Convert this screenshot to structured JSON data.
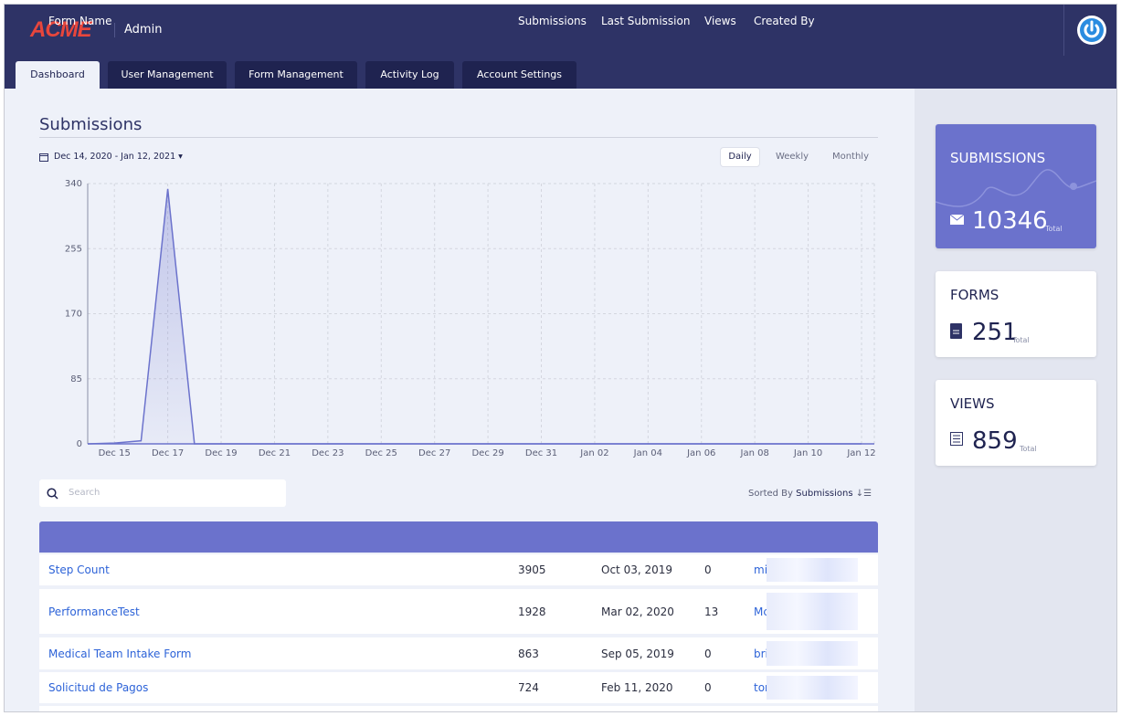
{
  "header": {
    "logo": "ACME",
    "title": "Admin"
  },
  "tabs": [
    "Dashboard",
    "User Management",
    "Form Management",
    "Activity Log",
    "Account Settings"
  ],
  "section_title": "Submissions",
  "date_range": "Dec 14, 2020 - Jan 12, 2021",
  "range_buttons": [
    "Daily",
    "Weekly",
    "Monthly"
  ],
  "chart_data": {
    "type": "area",
    "color": "#6b72cc",
    "categories": [
      null,
      "Dec 15",
      null,
      "Dec 17",
      null,
      "Dec 19",
      null,
      "Dec 21",
      null,
      "Dec 23",
      null,
      "Dec 25",
      null,
      "Dec 27",
      null,
      "Dec 29",
      null,
      "Dec 31",
      null,
      "Jan 02",
      null,
      "Jan 04",
      null,
      "Jan 06",
      null,
      "Jan 08",
      null,
      "Jan 10",
      null,
      "Jan 12"
    ],
    "values": [
      0,
      1,
      4,
      333,
      0,
      0,
      0,
      0,
      0,
      0,
      0,
      0,
      0,
      0,
      0,
      0,
      0,
      0,
      0,
      0,
      0,
      0,
      0,
      0,
      0,
      0,
      0,
      0,
      0,
      0
    ],
    "ylim": [
      0,
      340
    ],
    "yticks": [
      0,
      85,
      170,
      255,
      340
    ],
    "grid": true
  },
  "stats": [
    {
      "label": "SUBMISSIONS",
      "value": 10346,
      "unit": "Total"
    },
    {
      "label": "FORMS",
      "value": 251,
      "unit": "Total"
    },
    {
      "label": "VIEWS",
      "value": 859,
      "unit": "Total"
    }
  ],
  "search_placeholder": "Search",
  "sort": {
    "label": "Sorted By",
    "field": "Submissions"
  },
  "table": {
    "headers": [
      "Form Name",
      "Submissions",
      "Last Submission",
      "Views",
      "Created By"
    ],
    "rows": [
      [
        "Step Count",
        3905,
        "Oct 03, 2019",
        0,
        "mi"
      ],
      [
        "PerformanceTest",
        1928,
        "Mar 02, 2020",
        13,
        "Mc Ka"
      ],
      [
        "Medical Team Intake Form",
        863,
        "Sep 05, 2019",
        0,
        "bri"
      ],
      [
        "Solicitud de Pagos",
        724,
        "Feb 11, 2020",
        0,
        "tom tom"
      ]
    ]
  }
}
